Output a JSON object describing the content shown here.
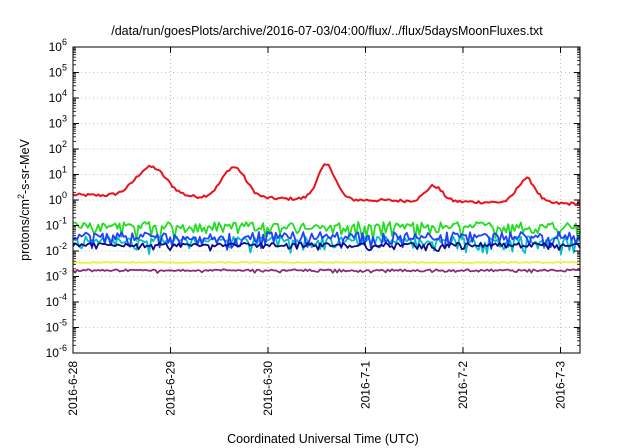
{
  "chart_data": {
    "type": "line",
    "title": "/data/run/goesPlots/archive/2016-07-03/04:00/flux/../flux/5daysMoonFluxes.txt",
    "xlabel": "Coordinated Universal Time (UTC)",
    "ylabel": {
      "prefix": "protons/cm",
      "sup": "2",
      "suffix": "-s-sr-MeV"
    },
    "yscale": "log",
    "ylim_exponents": [
      -6,
      6
    ],
    "y_ticks": [
      {
        "base": "10",
        "exp": "6"
      },
      {
        "base": "10",
        "exp": "5"
      },
      {
        "base": "10",
        "exp": "4"
      },
      {
        "base": "10",
        "exp": "3"
      },
      {
        "base": "10",
        "exp": "2"
      },
      {
        "base": "10",
        "exp": "1"
      },
      {
        "base": "10",
        "exp": "0"
      },
      {
        "base": "10",
        "exp": "-1"
      },
      {
        "base": "10",
        "exp": "-2"
      },
      {
        "base": "10",
        "exp": "-3"
      },
      {
        "base": "10",
        "exp": "-4"
      },
      {
        "base": "10",
        "exp": "-5"
      },
      {
        "base": "10",
        "exp": "-6"
      }
    ],
    "x_range_days": [
      0,
      5.2
    ],
    "x_ticks": [
      {
        "label": "2016-6-28",
        "day": 0
      },
      {
        "label": "2016-6-29",
        "day": 1
      },
      {
        "label": "2016-6-30",
        "day": 2
      },
      {
        "label": "2016-7-1",
        "day": 3
      },
      {
        "label": "2016-7-2",
        "day": 4
      },
      {
        "label": "2016-7-3",
        "day": 5
      }
    ],
    "grid": true,
    "series": [
      {
        "color": "#e8131c",
        "base": 0.2,
        "noise": 0.12,
        "bumps": [
          {
            "day": 0.8,
            "amp": 1.15,
            "width": 0.22
          },
          {
            "day": 1.65,
            "amp": 1.2,
            "width": 0.17
          },
          {
            "day": 2.6,
            "amp": 1.35,
            "width": 0.13
          },
          {
            "day": 3.7,
            "amp": 0.6,
            "width": 0.12
          },
          {
            "day": 4.65,
            "amp": 0.95,
            "width": 0.13
          }
        ],
        "trend": -0.35
      },
      {
        "color": "#22dd22",
        "base": -1.0,
        "noise": 0.28,
        "dips": 0.55
      },
      {
        "color": "#00c0c0",
        "base": -1.55,
        "noise": 0.25,
        "dips": 0.5
      },
      {
        "color": "#2040ff",
        "base": -1.4,
        "noise": 0.3,
        "dips": 0.5
      },
      {
        "color": "#0a0a8a",
        "base": -1.75,
        "noise": 0.15,
        "dips": 0.2
      },
      {
        "color": "#f0f040",
        "base": -2.45,
        "noise": 0.05,
        "dips": 0.0
      },
      {
        "color": "#8c2a7a",
        "base": -2.75,
        "noise": 0.07,
        "dips": 0.08
      }
    ]
  }
}
